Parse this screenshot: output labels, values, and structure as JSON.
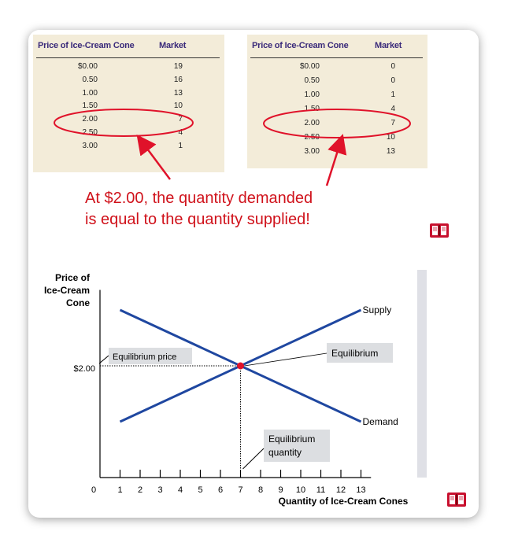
{
  "tables": [
    {
      "header_price": "Price of Ice-Cream Cone",
      "header_market": "Market",
      "rows": [
        {
          "price": "$0.00",
          "qty": "19"
        },
        {
          "price": "0.50",
          "qty": "16"
        },
        {
          "price": "1.00",
          "qty": "13"
        },
        {
          "price": "1.50",
          "qty": "10"
        },
        {
          "price": "2.00",
          "qty": "7"
        },
        {
          "price": "2.50",
          "qty": "4"
        },
        {
          "price": "3.00",
          "qty": "1"
        }
      ]
    },
    {
      "header_price": "Price of Ice-Cream Cone",
      "header_market": "Market",
      "rows": [
        {
          "price": "$0.00",
          "qty": "0"
        },
        {
          "price": "0.50",
          "qty": "0"
        },
        {
          "price": "1.00",
          "qty": "1"
        },
        {
          "price": "1.50",
          "qty": "4"
        },
        {
          "price": "2.00",
          "qty": "7"
        },
        {
          "price": "2.50",
          "qty": "10"
        },
        {
          "price": "3.00",
          "qty": "13"
        }
      ]
    }
  ],
  "callout": {
    "line1": "At $2.00, the quantity demanded",
    "line2": "is equal to the quantity supplied!"
  },
  "colors": {
    "curve": "#1f47a0",
    "highlight": "#e0122a",
    "table_bg": "#f3ecd9",
    "label_box": "#dcdee1"
  },
  "icons": [
    "book-icon",
    "book-icon"
  ],
  "chart_data": {
    "type": "line",
    "ylabel_lines": [
      "Price of",
      "Ice-Cream",
      "Cone"
    ],
    "xlabel": "Quantity of Ice-Cream Cones",
    "x_ticks": [
      0,
      1,
      2,
      3,
      4,
      5,
      6,
      7,
      8,
      9,
      10,
      11,
      12,
      13
    ],
    "x_tick_labels": [
      "0",
      "1",
      "2",
      "3",
      "4",
      "5",
      "6",
      "7",
      "8",
      "9",
      "10",
      "11",
      "12",
      "13"
    ],
    "y_tick_labels": [
      {
        "value": 2.0,
        "label": "$2.00"
      }
    ],
    "xlim": [
      0,
      13.5
    ],
    "ylim": [
      0,
      3.5
    ],
    "series": [
      {
        "name": "Supply",
        "x": [
          1,
          13
        ],
        "y": [
          1.0,
          3.0
        ]
      },
      {
        "name": "Demand",
        "x": [
          1,
          13
        ],
        "y": [
          3.0,
          1.0
        ]
      }
    ],
    "equilibrium": {
      "x": 7,
      "y": 2.0
    },
    "annotations": {
      "equilibrium_price": "Equilibrium price",
      "equilibrium": "Equilibrium",
      "equilibrium_quantity_1": "Equilibrium",
      "equilibrium_quantity_2": "quantity"
    }
  }
}
